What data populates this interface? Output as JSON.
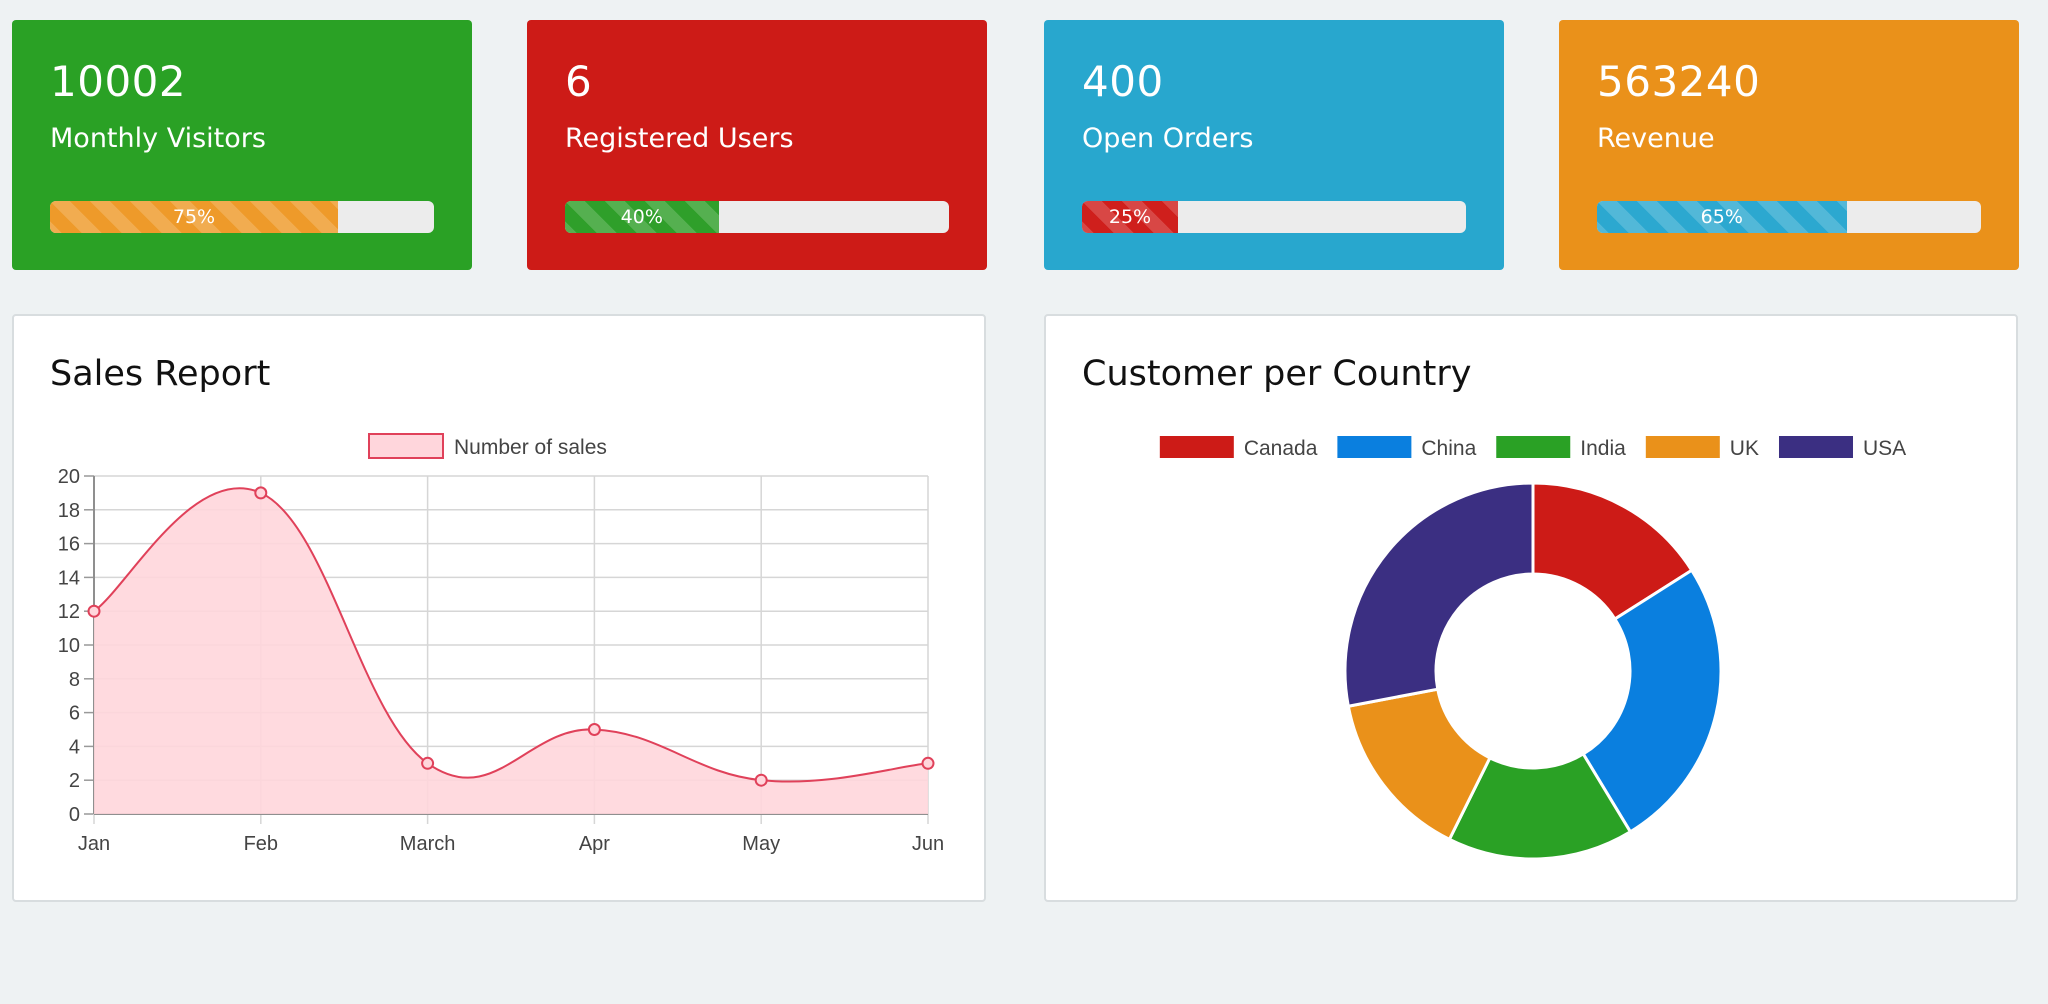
{
  "colors": {
    "green": "#2aa125",
    "red": "#cd1b17",
    "blue": "#28a7ce",
    "orange": "#ea911a"
  },
  "stats": [
    {
      "value": "10002",
      "label": "Monthly Visitors",
      "progress": 75,
      "progress_label": "75%",
      "card_color": "#2aa125",
      "bar_color": "#ee9a2a"
    },
    {
      "value": "6",
      "label": "Registered Users",
      "progress": 40,
      "progress_label": "40%",
      "card_color": "#cd1b17",
      "bar_color": "#2f9f2a"
    },
    {
      "value": "400",
      "label": "Open Orders",
      "progress": 25,
      "progress_label": "25%",
      "card_color": "#28a7ce",
      "bar_color": "#cf1f1c"
    },
    {
      "value": "563240",
      "label": "Revenue",
      "progress": 65,
      "progress_label": "65%",
      "card_color": "#ea911a",
      "bar_color": "#2ca8d0"
    }
  ],
  "sales_panel": {
    "title": "Sales Report"
  },
  "country_panel": {
    "title": "Customer per Country"
  },
  "chart_data": [
    {
      "type": "line",
      "title": "",
      "categories": [
        "Jan",
        "Feb",
        "March",
        "Apr",
        "May",
        "Jun"
      ],
      "series": [
        {
          "name": "Number of sales",
          "values": [
            12,
            19,
            3,
            5,
            2,
            3
          ],
          "color": "#e0415a",
          "fill": "#ffd6dc"
        }
      ],
      "ylim": [
        0,
        20
      ],
      "yticks": [
        0,
        2,
        4,
        6,
        8,
        10,
        12,
        14,
        16,
        18,
        20
      ],
      "grid": true,
      "legend": "top"
    },
    {
      "type": "pie",
      "donut": true,
      "title": "",
      "labels": [
        "Canada",
        "China",
        "India",
        "UK",
        "USA"
      ],
      "values": [
        12,
        19,
        12,
        11,
        21
      ],
      "colors": [
        "#cd1b17",
        "#0a7fdf",
        "#2aa125",
        "#ea911a",
        "#3b2f82"
      ],
      "legend": "top"
    }
  ]
}
